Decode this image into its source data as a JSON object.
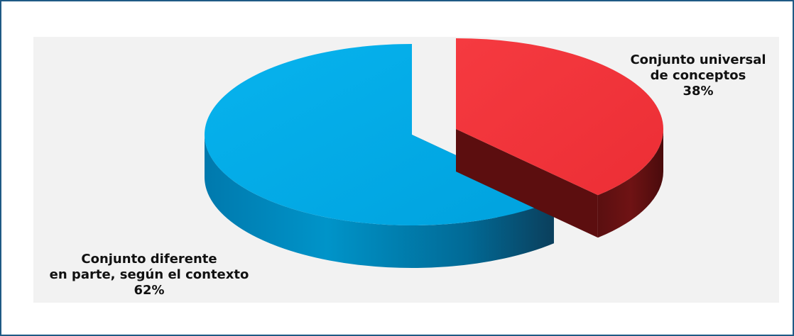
{
  "chart_data": {
    "type": "pie",
    "style": "3d-exploded",
    "slices": [
      {
        "label_lines": [
          "Conjunto universal",
          "de conceptos"
        ],
        "percent_label": "38%",
        "value": 38,
        "color": "#f0333b"
      },
      {
        "label_lines": [
          "Conjunto diferente",
          "en parte, según el contexto"
        ],
        "percent_label": "62%",
        "value": 62,
        "color": "#01a8e6"
      }
    ]
  }
}
